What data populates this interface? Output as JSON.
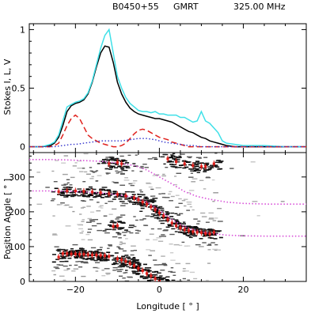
{
  "header": {
    "pulsar": "B0450+55",
    "telescope": "GMRT",
    "frequency": "325.00  MHz"
  },
  "chart_data": [
    {
      "type": "line",
      "panel": "stokes",
      "ylabel": "Stokes I, L, V",
      "xlim": [
        -31,
        35
      ],
      "ylim": [
        -0.05,
        1.05
      ],
      "yticks": [
        0,
        0.5,
        1
      ],
      "ytick_labels": [
        "0",
        "0.5",
        "1"
      ],
      "x": [
        -31,
        -28,
        -26,
        -25,
        -24,
        -23,
        -22,
        -21,
        -20,
        -19,
        -18,
        -17,
        -16,
        -15,
        -14,
        -13,
        -12,
        -11,
        -10,
        -9,
        -8,
        -7,
        -6,
        -5,
        -4,
        -3,
        -2,
        -1,
        0,
        1,
        2,
        3,
        4,
        5,
        6,
        7,
        8,
        9,
        10,
        11,
        12,
        13,
        14,
        15,
        16,
        18,
        20,
        25,
        30,
        35
      ],
      "series": [
        {
          "name": "I",
          "color": "#000000",
          "style": "solid",
          "values": [
            0,
            0,
            0.01,
            0.03,
            0.08,
            0.18,
            0.3,
            0.35,
            0.37,
            0.38,
            0.4,
            0.45,
            0.55,
            0.68,
            0.8,
            0.86,
            0.85,
            0.72,
            0.55,
            0.45,
            0.38,
            0.33,
            0.3,
            0.28,
            0.27,
            0.26,
            0.25,
            0.24,
            0.24,
            0.23,
            0.22,
            0.21,
            0.19,
            0.17,
            0.15,
            0.13,
            0.12,
            0.1,
            0.08,
            0.07,
            0.05,
            0.04,
            0.03,
            0.02,
            0.01,
            0,
            0,
            0,
            0,
            0
          ]
        },
        {
          "name": "L",
          "color": "#3fe0e8",
          "style": "solid",
          "values": [
            0,
            0,
            0.02,
            0.04,
            0.1,
            0.22,
            0.34,
            0.36,
            0.38,
            0.39,
            0.41,
            0.46,
            0.56,
            0.7,
            0.84,
            0.95,
            1.0,
            0.8,
            0.6,
            0.5,
            0.42,
            0.37,
            0.34,
            0.31,
            0.3,
            0.3,
            0.29,
            0.3,
            0.28,
            0.28,
            0.27,
            0.27,
            0.27,
            0.25,
            0.25,
            0.23,
            0.21,
            0.22,
            0.3,
            0.22,
            0.2,
            0.16,
            0.12,
            0.05,
            0.03,
            0.02,
            0.01,
            0.01,
            0,
            0
          ]
        },
        {
          "name": "V",
          "color": "#e0201c",
          "style": "dashed",
          "values": [
            0,
            0,
            0,
            0.01,
            0.03,
            0.1,
            0.18,
            0.24,
            0.27,
            0.24,
            0.17,
            0.1,
            0.07,
            0.05,
            0.03,
            0.02,
            0.01,
            0,
            0,
            0.01,
            0.03,
            0.07,
            0.11,
            0.14,
            0.15,
            0.14,
            0.12,
            0.1,
            0.08,
            0.07,
            0.06,
            0.04,
            0.03,
            0.02,
            0.01,
            0,
            0,
            0,
            0,
            0,
            0,
            0,
            0,
            0,
            0,
            0,
            0,
            0,
            0,
            0
          ]
        },
        {
          "name": "",
          "color": "#3333cc",
          "style": "dotted",
          "values": [
            0,
            0,
            0,
            0,
            0.005,
            0.01,
            0.015,
            0.02,
            0.02,
            0.025,
            0.03,
            0.035,
            0.04,
            0.045,
            0.05,
            0.05,
            0.05,
            0.05,
            0.05,
            0.05,
            0.055,
            0.06,
            0.065,
            0.07,
            0.07,
            0.07,
            0.065,
            0.06,
            0.05,
            0.04,
            0.035,
            0.03,
            0.025,
            0.02,
            0.015,
            0.01,
            0.01,
            0.005,
            0,
            0,
            0,
            0,
            0,
            0,
            0,
            0,
            0,
            0,
            0,
            0
          ]
        }
      ]
    },
    {
      "type": "scatter",
      "panel": "position-angle",
      "xlabel": "Longitude [ ° ]",
      "ylabel": "Position Angle [ ° ]",
      "xlim": [
        -31,
        35
      ],
      "ylim": [
        0,
        370
      ],
      "xticks": [
        -20,
        0,
        20
      ],
      "xtick_labels": [
        "−20",
        "0",
        "20"
      ],
      "yticks": [
        0,
        100,
        200,
        300
      ],
      "ytick_labels": [
        "0",
        "100",
        "200",
        "300"
      ],
      "pa_points": [
        {
          "x": -24,
          "y": 70
        },
        {
          "x": -23,
          "y": 80
        },
        {
          "x": -22,
          "y": 80
        },
        {
          "x": -21,
          "y": 79
        },
        {
          "x": -20,
          "y": 79
        },
        {
          "x": -19,
          "y": 78
        },
        {
          "x": -18,
          "y": 78
        },
        {
          "x": -17,
          "y": 77
        },
        {
          "x": -16,
          "y": 76
        },
        {
          "x": -15,
          "y": 76
        },
        {
          "x": -14,
          "y": 75
        },
        {
          "x": -13,
          "y": 74
        },
        {
          "x": -12,
          "y": 72
        },
        {
          "x": -10,
          "y": 65
        },
        {
          "x": -9,
          "y": 62
        },
        {
          "x": -8,
          "y": 58
        },
        {
          "x": -7,
          "y": 52
        },
        {
          "x": -6,
          "y": 45
        },
        {
          "x": -5,
          "y": 38
        },
        {
          "x": -4,
          "y": 31
        },
        {
          "x": -3,
          "y": 23
        },
        {
          "x": -2,
          "y": 16
        },
        {
          "x": -1,
          "y": 8
        },
        {
          "x": 0,
          "y": 1
        },
        {
          "x": -24,
          "y": 258
        },
        {
          "x": -22,
          "y": 260
        },
        {
          "x": -20,
          "y": 260
        },
        {
          "x": -18,
          "y": 259
        },
        {
          "x": -16,
          "y": 257
        },
        {
          "x": -14,
          "y": 255
        },
        {
          "x": -12,
          "y": 252
        },
        {
          "x": -10,
          "y": 250
        },
        {
          "x": -8,
          "y": 246
        },
        {
          "x": -6,
          "y": 240
        },
        {
          "x": -5,
          "y": 235
        },
        {
          "x": -4,
          "y": 228
        },
        {
          "x": -3,
          "y": 222
        },
        {
          "x": -2,
          "y": 214
        },
        {
          "x": -1,
          "y": 206
        },
        {
          "x": 0,
          "y": 197
        },
        {
          "x": 1,
          "y": 188
        },
        {
          "x": 2,
          "y": 178
        },
        {
          "x": 3,
          "y": 168
        },
        {
          "x": 4,
          "y": 160
        },
        {
          "x": 5,
          "y": 154
        },
        {
          "x": 6,
          "y": 149
        },
        {
          "x": 7,
          "y": 146
        },
        {
          "x": 8,
          "y": 143
        },
        {
          "x": 9,
          "y": 141
        },
        {
          "x": 10,
          "y": 140
        },
        {
          "x": 11,
          "y": 138
        },
        {
          "x": 12,
          "y": 137
        },
        {
          "x": 13,
          "y": 141
        },
        {
          "x": -11,
          "y": 158
        },
        {
          "x": -10,
          "y": 160
        },
        {
          "x": -12,
          "y": 338
        },
        {
          "x": -10,
          "y": 342
        },
        {
          "x": -9,
          "y": 338
        },
        {
          "x": 2,
          "y": 352
        },
        {
          "x": 4,
          "y": 344
        },
        {
          "x": 6,
          "y": 338
        },
        {
          "x": 8,
          "y": 333
        },
        {
          "x": 10,
          "y": 330
        },
        {
          "x": 11,
          "y": 330
        },
        {
          "x": 13,
          "y": 338
        }
      ],
      "rvm_x": [
        -31,
        -26,
        -22,
        -18,
        -14,
        -10,
        -6,
        -3,
        0,
        3,
        6,
        9,
        12,
        16,
        20,
        26,
        35
      ],
      "rvm_lower": [
        260,
        260,
        259,
        257,
        254,
        249,
        241,
        228,
        204,
        178,
        157,
        145,
        138,
        133,
        131,
        130,
        130
      ],
      "rvm_upper": [
        350,
        350,
        349,
        347,
        345,
        340,
        333,
        320,
        300,
        280,
        258,
        244,
        236,
        228,
        224,
        222,
        222
      ]
    }
  ]
}
